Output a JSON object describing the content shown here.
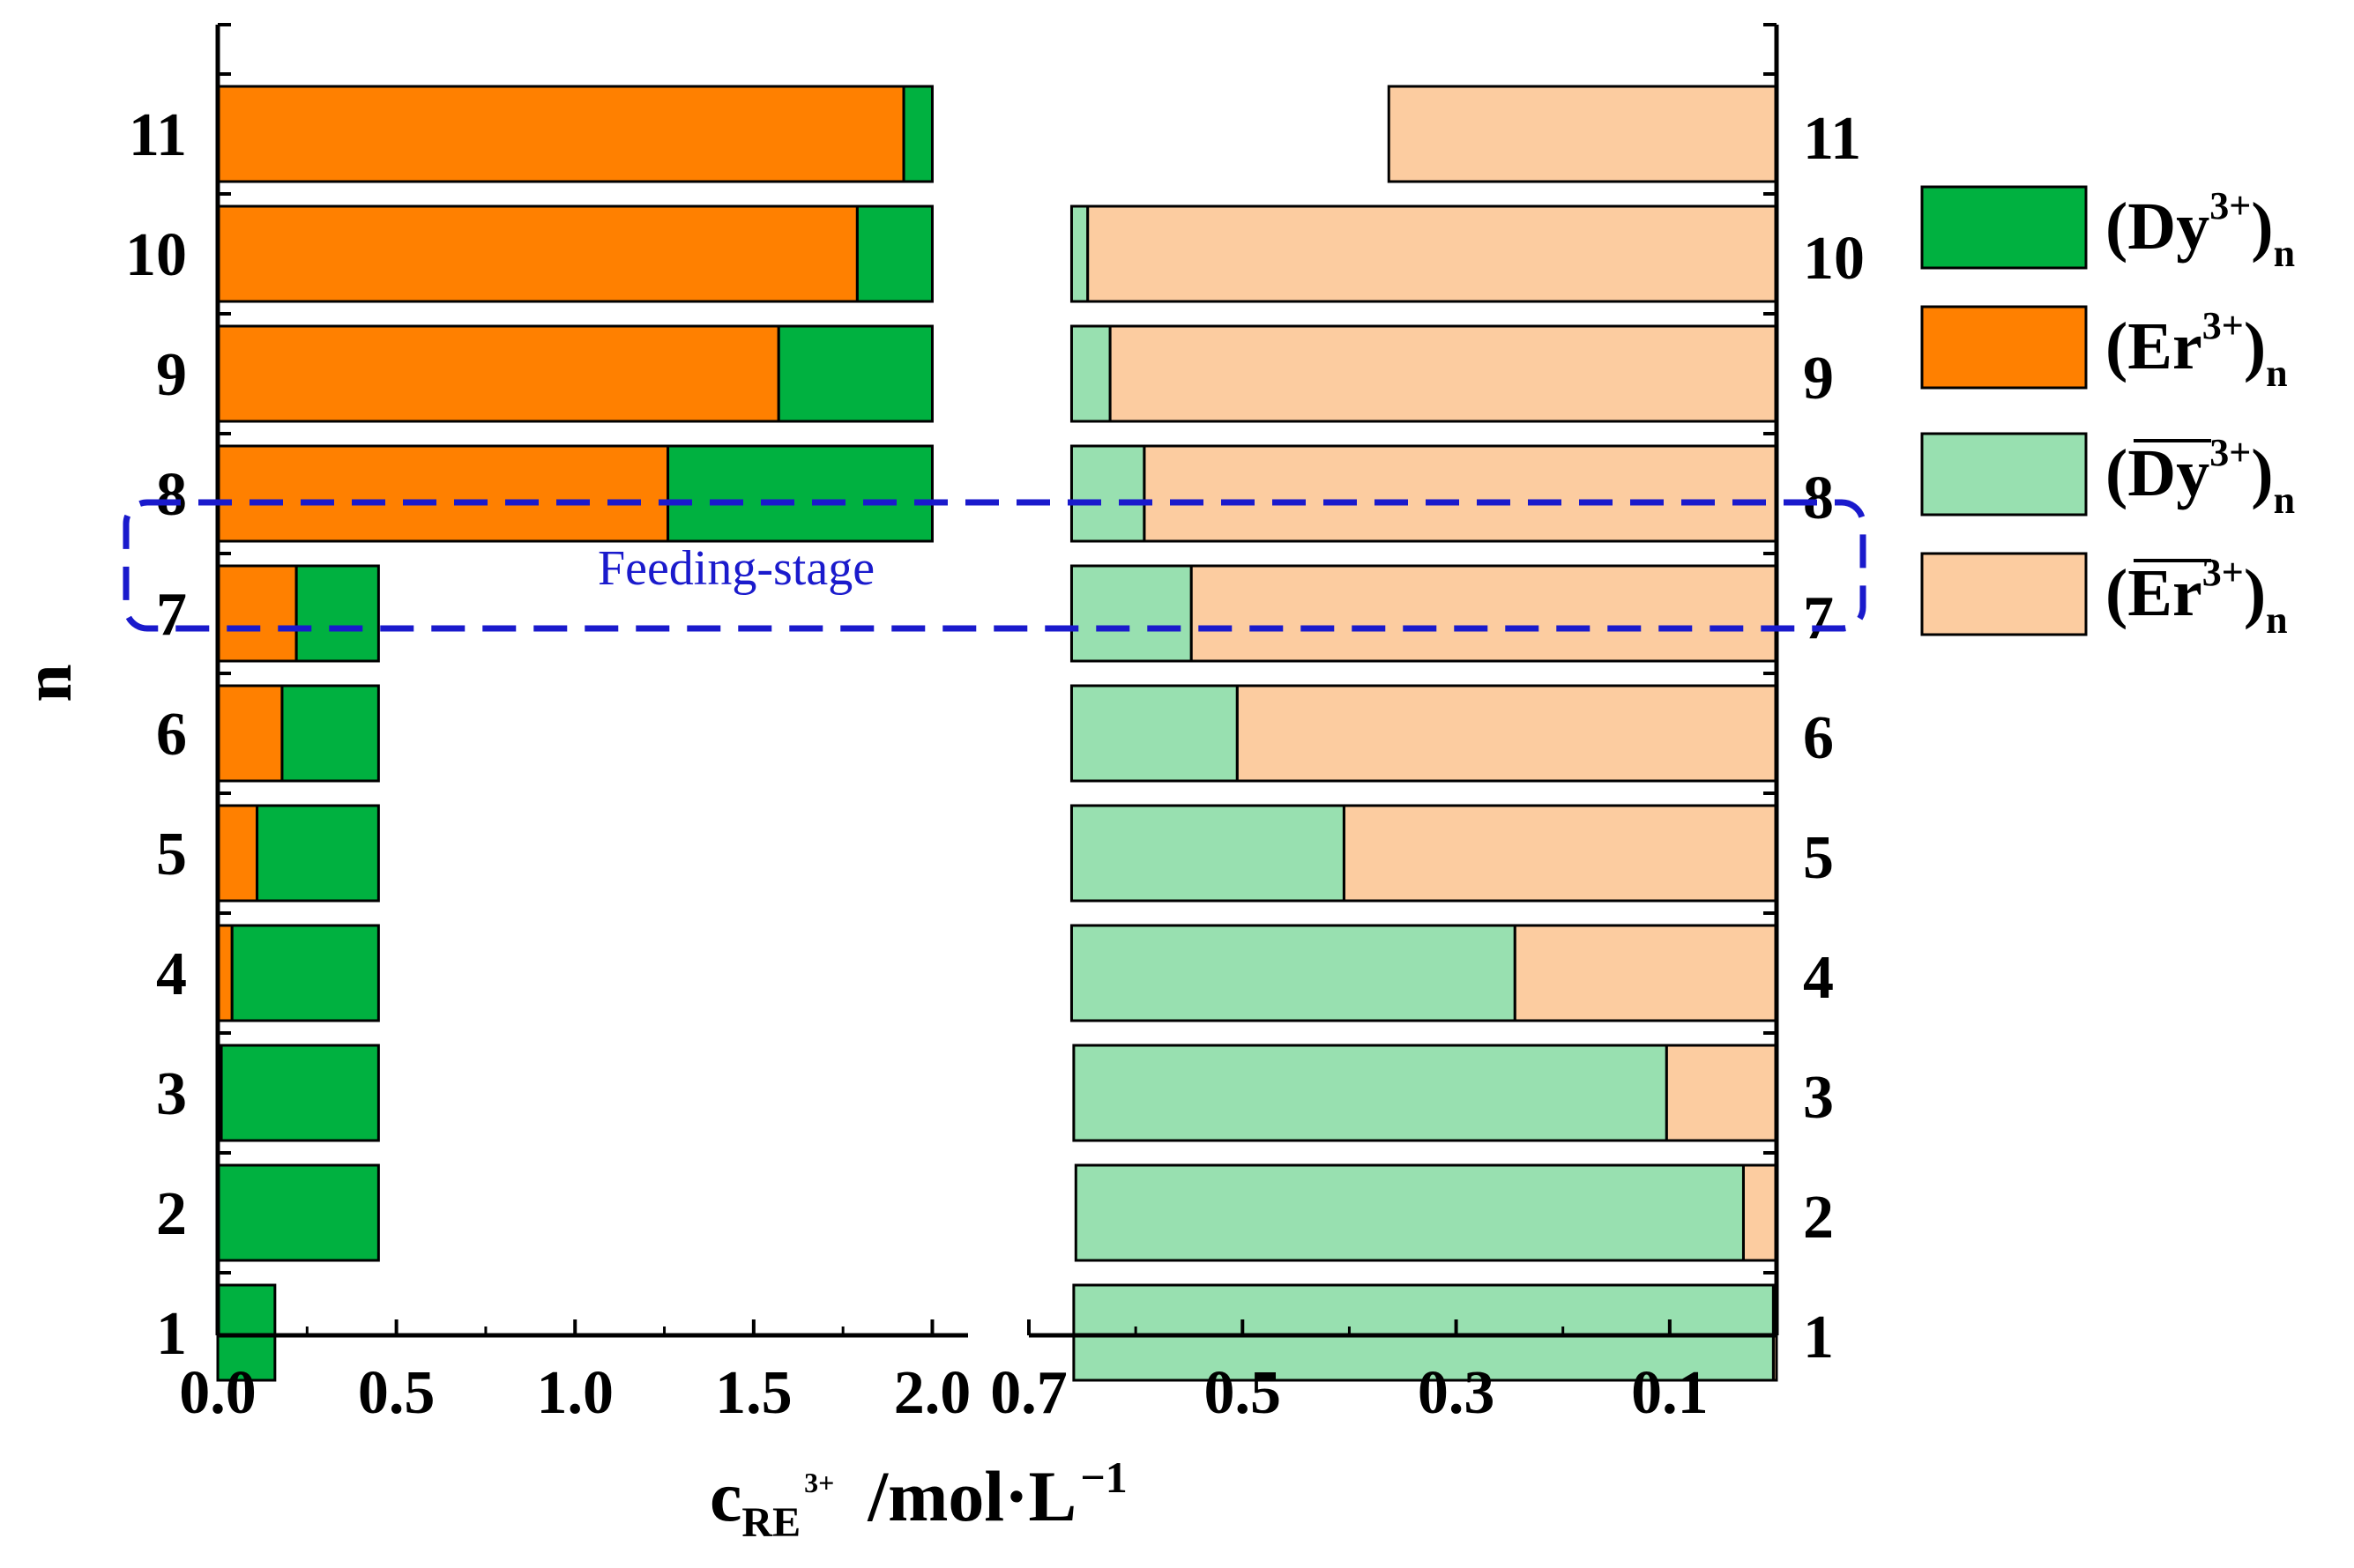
{
  "chart_data": {
    "type": "bar",
    "orientation": "horizontal-stacked",
    "ylabel": "n",
    "xlabel": {
      "main": "c",
      "subscript": "RE",
      "superscript": "3+",
      "unit": "/mol·L",
      "unit_superscript": "−1"
    },
    "categories": [
      "1",
      "2",
      "3",
      "4",
      "5",
      "6",
      "7",
      "8",
      "9",
      "10",
      "11"
    ],
    "annotation": "Feeding-stage",
    "annotation_row": "7",
    "colors": {
      "dy_aq": "#00b140",
      "er_aq": "#ff8000",
      "dy_org": "#98e0b0",
      "er_org": "#fccca0",
      "annotation": "#1a1acc"
    },
    "left_panel": {
      "xlim": [
        0.0,
        2.1
      ],
      "xticks": [
        "0.0",
        "0.5",
        "1.0",
        "1.5",
        "2.0"
      ],
      "xtick_values": [
        0.0,
        0.5,
        1.0,
        1.5,
        2.0
      ],
      "series": [
        {
          "name": "(Er3+)n",
          "key": "er_aq",
          "values": [
            0.0,
            0.0,
            0.01,
            0.04,
            0.11,
            0.18,
            0.22,
            1.26,
            1.57,
            1.79,
            1.92
          ]
        },
        {
          "name": "(Dy3+)n",
          "key": "dy_aq",
          "values": [
            0.16,
            0.45,
            0.44,
            0.41,
            0.34,
            0.27,
            0.23,
            0.74,
            0.43,
            0.21,
            0.08
          ]
        }
      ]
    },
    "right_panel": {
      "xlim": [
        0.7,
        0.0
      ],
      "xticks": [
        "0.7",
        "0.5",
        "0.3",
        "0.1"
      ],
      "xtick_values": [
        0.7,
        0.5,
        0.3,
        0.1
      ],
      "series": [
        {
          "name": "(Dy3+)n org",
          "key": "dy_org",
          "values": [
            0.655,
            0.625,
            0.555,
            0.415,
            0.255,
            0.155,
            0.112,
            0.068,
            0.036,
            0.015,
            0.0
          ]
        },
        {
          "name": "(Er3+)n org",
          "key": "er_org",
          "values": [
            0.003,
            0.031,
            0.103,
            0.245,
            0.405,
            0.505,
            0.548,
            0.592,
            0.624,
            0.645,
            0.363
          ]
        }
      ]
    },
    "legend": [
      {
        "key": "dy_aq",
        "base": "(Dy",
        "sup": "3+",
        "close": ")",
        "sub": "n",
        "overline": false
      },
      {
        "key": "er_aq",
        "base": "(Er",
        "sup": "3+",
        "close": ")",
        "sub": "n",
        "overline": false
      },
      {
        "key": "dy_org",
        "base": "(Dy",
        "sup": "3+",
        "close": ")",
        "sub": "n",
        "overline": true
      },
      {
        "key": "er_org",
        "base": "(Er",
        "sup": "3+",
        "close": ")",
        "sub": "n",
        "overline": true
      }
    ]
  }
}
